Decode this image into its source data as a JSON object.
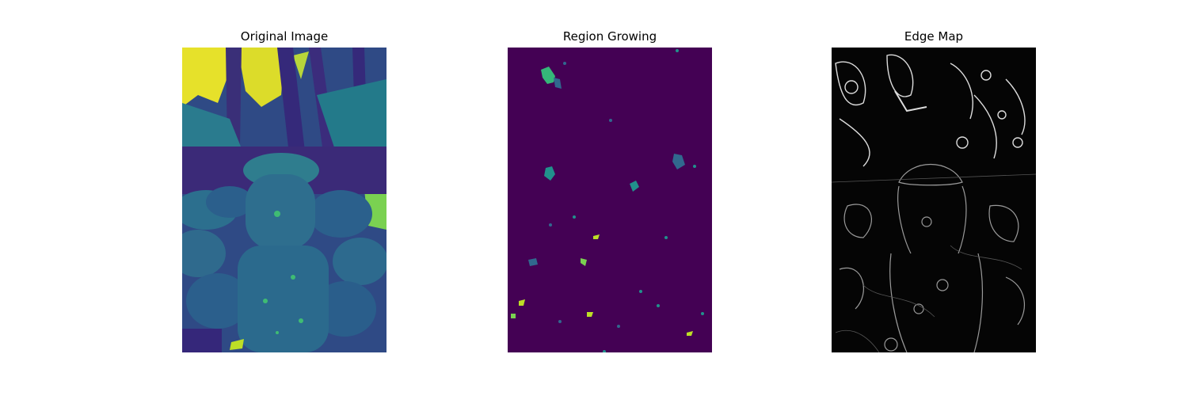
{
  "figure": {
    "panels": [
      {
        "id": "original",
        "title": "Original Image",
        "icon": "viridis-grayscale-photo-statue",
        "colors": {
          "background": "#3b528b",
          "dark": "#30266f",
          "mid": "#2a788e",
          "light": "#22a884",
          "bright": "#fde725"
        }
      },
      {
        "id": "region",
        "title": "Region Growing",
        "icon": "segmentation-label-map",
        "colors": {
          "background": "#440154",
          "teal": "#21918c",
          "blue": "#31688e",
          "green": "#35b779",
          "yellow": "#bddf26"
        }
      },
      {
        "id": "edge",
        "title": "Edge Map",
        "icon": "sobel-edge-map",
        "colors": {
          "background": "#050505",
          "edge_faint": "#555555",
          "edge_strong": "#e8e8e8"
        }
      }
    ]
  }
}
